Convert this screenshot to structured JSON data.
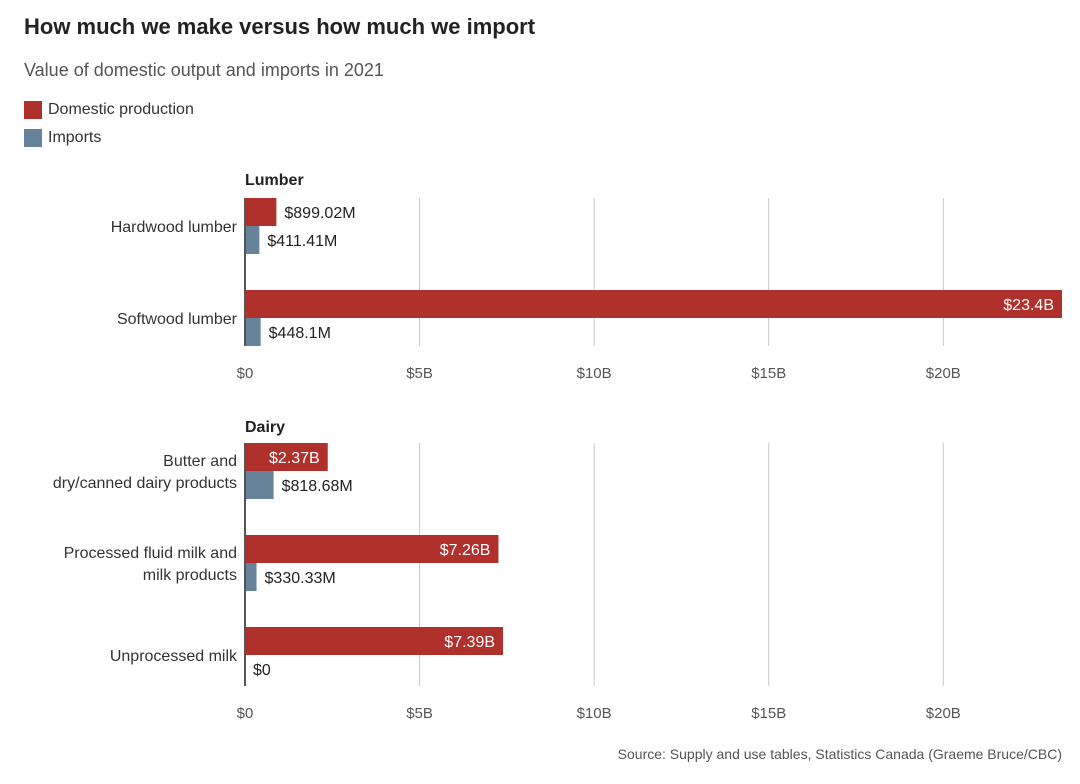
{
  "title": "How much we make versus how much we import",
  "subtitle": "Value of domestic output and imports in 2021",
  "legend": [
    {
      "label": "Domestic production",
      "color": "#b0302c"
    },
    {
      "label": "Imports",
      "color": "#668399"
    }
  ],
  "source": "Source: Supply and use tables, Statistics Canada (Graeme Bruce/CBC)",
  "chart_data": [
    {
      "type": "bar",
      "orientation": "horizontal",
      "title": "Lumber",
      "categories": [
        [
          "Hardwood lumber"
        ],
        [
          "Softwood lumber"
        ]
      ],
      "series": [
        {
          "name": "Domestic production",
          "color": "#b0302c",
          "values": [
            0.89902,
            23.4
          ],
          "labels": [
            "$899.02M",
            "$23.4B"
          ]
        },
        {
          "name": "Imports",
          "color": "#668399",
          "values": [
            0.41141,
            0.4481
          ],
          "labels": [
            "$411.41M",
            "$448.1M"
          ]
        }
      ],
      "xlim": [
        0,
        23.4
      ],
      "xticks": [
        0,
        5,
        10,
        15,
        20
      ],
      "xtick_labels": [
        "$0",
        "$5B",
        "$10B",
        "$15B",
        "$20B"
      ],
      "grid": true
    },
    {
      "type": "bar",
      "orientation": "horizontal",
      "title": "Dairy",
      "categories": [
        [
          "Butter and",
          "dry/canned dairy products"
        ],
        [
          "Processed fluid milk and",
          "milk products"
        ],
        [
          "Unprocessed milk"
        ]
      ],
      "series": [
        {
          "name": "Domestic production",
          "color": "#b0302c",
          "values": [
            2.37,
            7.26,
            7.39
          ],
          "labels": [
            "$2.37B",
            "$7.26B",
            "$7.39B"
          ]
        },
        {
          "name": "Imports",
          "color": "#668399",
          "values": [
            0.81868,
            0.33033,
            0
          ],
          "labels": [
            "$818.68M",
            "$330.33M",
            "$0"
          ]
        }
      ],
      "xlim": [
        0,
        23.4
      ],
      "xticks": [
        0,
        5,
        10,
        15,
        20
      ],
      "xtick_labels": [
        "$0",
        "$5B",
        "$10B",
        "$15B",
        "$20B"
      ],
      "grid": true
    }
  ]
}
